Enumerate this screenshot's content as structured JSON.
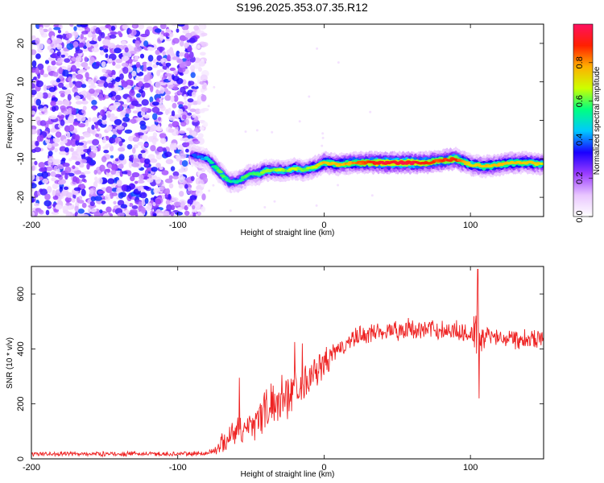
{
  "title": "S196.2025.353.07.35.R12",
  "colorbar": {
    "label": "Normalized spectral amplitude",
    "range": [
      0,
      1
    ],
    "ticks": [
      "0.0",
      "0.2",
      "0.4",
      "0.6",
      "0.8"
    ],
    "tick_values": [
      0.0,
      0.2,
      0.4,
      0.6,
      0.8
    ],
    "colors": [
      "#ffffff",
      "#e9c6ff",
      "#9b3dff",
      "#1a00ff",
      "#00c8ff",
      "#00ff80",
      "#ccff00",
      "#ffb000",
      "#ff2000",
      "#ff1060"
    ]
  },
  "chart_data": [
    {
      "type": "heatmap",
      "xlabel": "Height of straight line (km)",
      "ylabel": "Frequency (Hz)",
      "xlim": [
        -200,
        150
      ],
      "ylim": [
        -25,
        25
      ],
      "xticks": [
        -200,
        -100,
        0,
        100
      ],
      "yticks": [
        -20,
        -10,
        0,
        10,
        20
      ],
      "noise_region_x": [
        -200,
        -87
      ],
      "ridge": {
        "x": [
          -90,
          -85,
          -80,
          -75,
          -70,
          -65,
          -60,
          -55,
          -50,
          -45,
          -40,
          -35,
          -30,
          -25,
          -20,
          -15,
          -10,
          -5,
          0,
          10,
          20,
          40,
          60,
          70,
          80,
          90,
          100,
          110,
          120,
          130,
          140,
          150
        ],
        "freq": [
          -9,
          -9.5,
          -10,
          -12,
          -14,
          -16,
          -16,
          -15,
          -14,
          -14,
          -13,
          -13,
          -13,
          -13,
          -12.5,
          -13,
          -12.5,
          -12,
          -11,
          -11.5,
          -11,
          -11,
          -11,
          -11,
          -10.5,
          -10,
          -11.5,
          -12,
          -11.5,
          -11,
          -11,
          -11.5
        ],
        "amplitude": [
          0.35,
          0.4,
          0.45,
          0.55,
          0.6,
          0.55,
          0.5,
          0.6,
          0.55,
          0.6,
          0.65,
          0.6,
          0.65,
          0.6,
          0.7,
          0.6,
          0.65,
          0.7,
          0.75,
          0.75,
          0.8,
          0.95,
          0.95,
          0.9,
          0.85,
          0.9,
          0.7,
          0.75,
          0.75,
          0.75,
          0.75,
          0.7
        ]
      }
    },
    {
      "type": "line",
      "xlabel": "Height of straight line (km)",
      "ylabel": "SNR (10 * v/v)",
      "xlim": [
        -200,
        150
      ],
      "ylim": [
        0,
        700
      ],
      "xticks": [
        -200,
        -100,
        0,
        100
      ],
      "yticks": [
        0,
        200,
        400,
        600
      ],
      "color": "#ee2222",
      "series": [
        {
          "name": "SNR",
          "envelope_x": [
            -200,
            -150,
            -100,
            -80,
            -75,
            -70,
            -65,
            -60,
            -55,
            -50,
            -45,
            -40,
            -35,
            -30,
            -25,
            -20,
            -15,
            -10,
            -5,
            0,
            5,
            10,
            15,
            20,
            25,
            30,
            35,
            40,
            45,
            50,
            60,
            70,
            80,
            90,
            100,
            103,
            105,
            106,
            107,
            108,
            110,
            120,
            130,
            140,
            150
          ],
          "envelope_mean": [
            18,
            18,
            18,
            20,
            30,
            55,
            80,
            110,
            100,
            130,
            150,
            180,
            195,
            220,
            240,
            260,
            275,
            295,
            320,
            345,
            370,
            395,
            420,
            435,
            445,
            455,
            462,
            465,
            468,
            470,
            470,
            470,
            470,
            465,
            460,
            455,
            450,
            460,
            380,
            440,
            450,
            445,
            440,
            440,
            440
          ],
          "envelope_spread": [
            10,
            10,
            10,
            12,
            20,
            40,
            60,
            70,
            60,
            80,
            90,
            100,
            90,
            100,
            100,
            90,
            80,
            80,
            70,
            60,
            55,
            50,
            45,
            45,
            45,
            45,
            45,
            45,
            45,
            45,
            45,
            45,
            45,
            45,
            50,
            120,
            180,
            150,
            170,
            60,
            45,
            45,
            45,
            45,
            45
          ],
          "spikes": [
            {
              "x": -58,
              "y": 295
            },
            {
              "x": -20,
              "y": 425
            },
            {
              "x": -15,
              "y": 420
            },
            {
              "x": 105,
              "y": 690
            },
            {
              "x": 106,
              "y": 220
            }
          ]
        }
      ]
    }
  ]
}
